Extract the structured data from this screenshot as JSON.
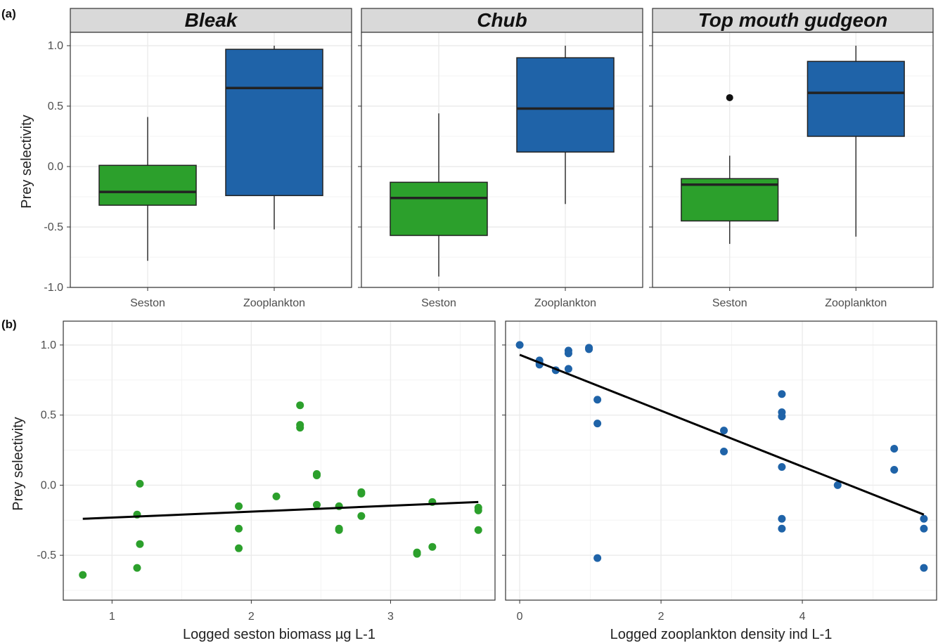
{
  "panel_labels": [
    "(a)",
    "(b)"
  ],
  "colors": {
    "seston": "#2ca02c",
    "zooplankton": "#1f63a8",
    "box_outline": "#222222",
    "strip_fill": "#d9d9d9",
    "grid": "#ebebeb",
    "fit_line": "#000000"
  },
  "chart_data": [
    {
      "type": "box",
      "facet": "Bleak",
      "categories": [
        "Seston",
        "Zooplankton"
      ],
      "ylabel": "Prey selectivity",
      "ylim": [
        -1.0,
        1.0
      ],
      "yticks": [
        "1.0",
        "0.5",
        "0.0",
        "-0.5",
        "-1.0"
      ],
      "boxes": [
        {
          "category": "Seston",
          "whisker_low": -0.78,
          "q1": -0.32,
          "median": -0.21,
          "q3": 0.01,
          "whisker_high": 0.41,
          "outliers": []
        },
        {
          "category": "Zooplankton",
          "whisker_low": -0.52,
          "q1": -0.24,
          "median": 0.65,
          "q3": 0.97,
          "whisker_high": 1.0,
          "outliers": []
        }
      ]
    },
    {
      "type": "box",
      "facet": "Chub",
      "categories": [
        "Seston",
        "Zooplankton"
      ],
      "ylim": [
        -1.0,
        1.0
      ],
      "boxes": [
        {
          "category": "Seston",
          "whisker_low": -0.91,
          "q1": -0.57,
          "median": -0.26,
          "q3": -0.13,
          "whisker_high": 0.44,
          "outliers": []
        },
        {
          "category": "Zooplankton",
          "whisker_low": -0.31,
          "q1": 0.12,
          "median": 0.48,
          "q3": 0.9,
          "whisker_high": 1.0,
          "outliers": []
        }
      ]
    },
    {
      "type": "box",
      "facet": "Top mouth gudgeon",
      "categories": [
        "Seston",
        "Zooplankton"
      ],
      "ylim": [
        -1.0,
        1.0
      ],
      "boxes": [
        {
          "category": "Seston",
          "whisker_low": -0.64,
          "q1": -0.45,
          "median": -0.15,
          "q3": -0.1,
          "whisker_high": 0.09,
          "outliers": [
            0.57
          ]
        },
        {
          "category": "Zooplankton",
          "whisker_low": -0.58,
          "q1": 0.25,
          "median": 0.61,
          "q3": 0.87,
          "whisker_high": 1.0,
          "outliers": []
        }
      ]
    },
    {
      "type": "scatter",
      "xlabel": "Logged seston biomass µg L-1",
      "ylabel": "Prey selectivity",
      "xlim": [
        0.65,
        3.75
      ],
      "ylim": [
        -0.82,
        1.17
      ],
      "xticks": [
        "1",
        "2",
        "3"
      ],
      "yticks": [
        "1.0",
        "0.5",
        "0.0",
        "-0.5"
      ],
      "points": [
        [
          0.79,
          -0.64
        ],
        [
          1.18,
          -0.59
        ],
        [
          1.18,
          -0.21
        ],
        [
          1.2,
          0.01
        ],
        [
          1.2,
          -0.42
        ],
        [
          1.91,
          -0.15
        ],
        [
          1.91,
          -0.31
        ],
        [
          1.91,
          -0.45
        ],
        [
          2.18,
          -0.08
        ],
        [
          2.35,
          0.57
        ],
        [
          2.35,
          0.43
        ],
        [
          2.35,
          0.41
        ],
        [
          2.47,
          0.08
        ],
        [
          2.47,
          0.07
        ],
        [
          2.47,
          -0.14
        ],
        [
          2.63,
          -0.15
        ],
        [
          2.63,
          -0.32
        ],
        [
          2.63,
          -0.31
        ],
        [
          2.79,
          -0.06
        ],
        [
          2.79,
          -0.05
        ],
        [
          2.79,
          -0.22
        ],
        [
          3.19,
          -0.48
        ],
        [
          3.19,
          -0.49
        ],
        [
          3.3,
          -0.12
        ],
        [
          3.3,
          -0.44
        ],
        [
          3.63,
          -0.16
        ],
        [
          3.63,
          -0.18
        ],
        [
          3.63,
          -0.32
        ]
      ],
      "fit_line": {
        "x": [
          0.79,
          3.63
        ],
        "y": [
          -0.24,
          -0.12
        ]
      }
    },
    {
      "type": "scatter",
      "xlabel": "Logged zooplankton density ind L-1",
      "xlim": [
        -0.2,
        5.9
      ],
      "ylim": [
        -0.82,
        1.17
      ],
      "xticks": [
        "0",
        "2",
        "4"
      ],
      "points": [
        [
          0.0,
          1.0
        ],
        [
          0.28,
          0.89
        ],
        [
          0.28,
          0.86
        ],
        [
          0.28,
          0.87
        ],
        [
          0.51,
          0.82
        ],
        [
          0.69,
          0.96
        ],
        [
          0.69,
          0.94
        ],
        [
          0.69,
          0.83
        ],
        [
          0.98,
          0.98
        ],
        [
          0.98,
          0.97
        ],
        [
          1.1,
          0.61
        ],
        [
          1.1,
          0.44
        ],
        [
          1.1,
          -0.52
        ],
        [
          2.89,
          0.39
        ],
        [
          2.89,
          0.24
        ],
        [
          3.71,
          0.65
        ],
        [
          3.71,
          0.52
        ],
        [
          3.71,
          0.49
        ],
        [
          3.71,
          0.13
        ],
        [
          3.71,
          -0.24
        ],
        [
          3.71,
          -0.31
        ],
        [
          4.5,
          0.0
        ],
        [
          5.3,
          0.26
        ],
        [
          5.3,
          0.11
        ],
        [
          5.72,
          -0.24
        ],
        [
          5.72,
          -0.31
        ],
        [
          5.72,
          -0.59
        ]
      ],
      "fit_line": {
        "x": [
          0.0,
          5.72
        ],
        "y": [
          0.93,
          -0.21
        ]
      }
    }
  ]
}
